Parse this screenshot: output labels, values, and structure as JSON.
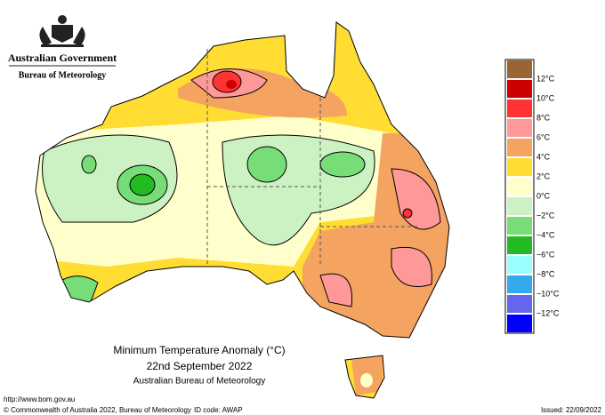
{
  "header": {
    "government": "Australian Government",
    "bureau": "Bureau of Meteorology"
  },
  "legend": [
    {
      "color": "#996633"
    },
    {
      "label": "12°C",
      "color": "#cc0000"
    },
    {
      "label": "10°C",
      "color": "#ff3333"
    },
    {
      "label": "8°C",
      "color": "#ff9999"
    },
    {
      "label": "6°C",
      "color": "#f4a460"
    },
    {
      "label": "4°C",
      "color": "#ffdd33"
    },
    {
      "label": "2°C",
      "color": "#ffffcc"
    },
    {
      "label": "0°C",
      "color": "#ccf2c4"
    },
    {
      "label": "−2°C",
      "color": "#77dd77"
    },
    {
      "label": "−4°C",
      "color": "#22bb22"
    },
    {
      "label": "−6°C",
      "color": "#99ffff"
    },
    {
      "label": "−8°C",
      "color": "#33aaee"
    },
    {
      "label": "−10°C",
      "color": "#6666ee"
    },
    {
      "label": "−12°C",
      "color": "#0000ff"
    }
  ],
  "title": {
    "line1": "Minimum Temperature Anomaly (°C)",
    "line2": "22nd September 2022",
    "line3": "Australian Bureau of Meteorology"
  },
  "footer": {
    "url": "http://www.bom.gov.au",
    "copyright": "© Commonwealth of Australia 2022, Bureau of Meteorology",
    "id": "ID code: AWAP",
    "issued": "Issued: 22/09/2022"
  }
}
